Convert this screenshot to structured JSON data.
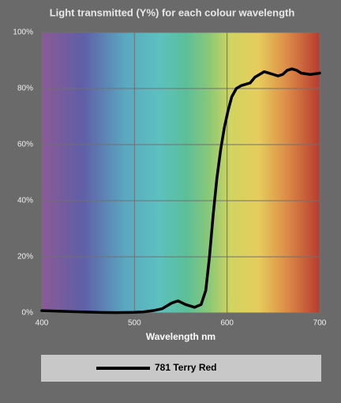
{
  "chart_data": {
    "type": "line",
    "title": "Light transmitted (Y%) for each colour wavelength",
    "x_label": "Wavelength nm",
    "x": [
      400,
      420,
      440,
      460,
      480,
      500,
      510,
      520,
      530,
      540,
      547,
      555,
      565,
      572,
      577,
      581,
      585,
      589,
      593,
      597,
      601,
      605,
      610,
      615,
      620,
      625,
      630,
      640,
      645,
      650,
      655,
      660,
      665,
      670,
      675,
      680,
      690,
      700
    ],
    "series": [
      {
        "name": "781 Terry Red",
        "color": "#000000",
        "values": [
          0.8,
          0.6,
          0.4,
          0.2,
          0.1,
          0.2,
          0.4,
          0.8,
          1.5,
          3.5,
          4.3,
          3,
          2,
          3,
          8,
          20,
          35,
          48,
          58,
          66,
          72,
          77,
          80,
          81,
          81.5,
          82,
          84,
          86,
          85.5,
          85,
          84.5,
          85,
          86.5,
          87,
          86.5,
          85.5,
          85,
          85.5
        ]
      }
    ],
    "xlim": [
      400,
      700
    ],
    "xticks": [
      400,
      500,
      600,
      700
    ],
    "ylim": [
      0,
      100
    ],
    "yticks": [
      {
        "value": 0,
        "label": "0%"
      },
      {
        "value": 20,
        "label": "20%"
      },
      {
        "value": 40,
        "label": "40%"
      },
      {
        "value": 60,
        "label": "60%"
      },
      {
        "value": 80,
        "label": "80%"
      },
      {
        "value": 100,
        "label": "100%"
      }
    ],
    "grid": true
  }
}
